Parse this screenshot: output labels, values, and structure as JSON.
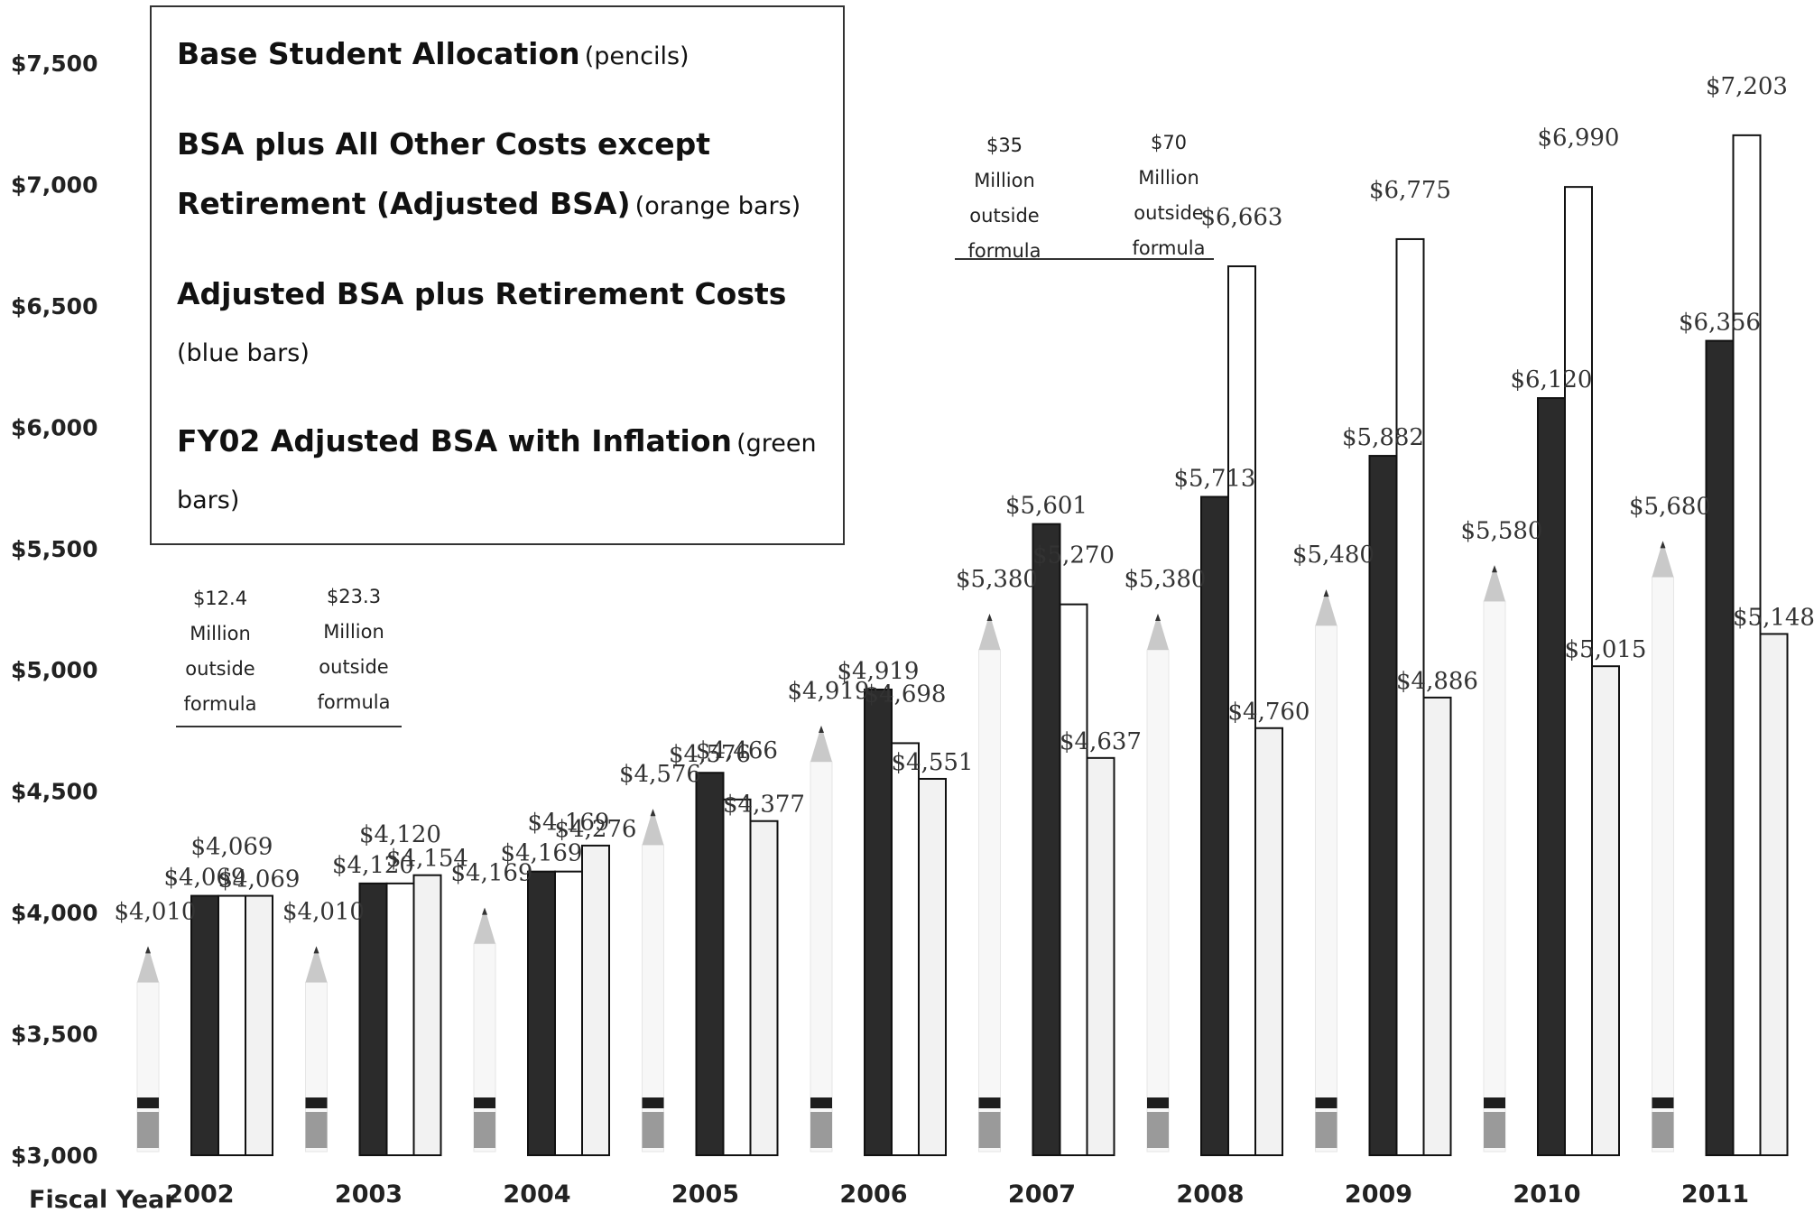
{
  "legend": {
    "entries": [
      {
        "main": "Base Student Allocation",
        "sub": "(pencils)"
      },
      {
        "main": "BSA plus All Other Costs except Retirement (Adjusted BSA)",
        "sub": "(orange bars)"
      },
      {
        "main": "Adjusted BSA plus Retirement Costs",
        "sub": "(blue bars)"
      },
      {
        "main": "FY02 Adjusted BSA with Inflation",
        "sub": "(green bars)"
      }
    ]
  },
  "notes": [
    {
      "id": "n2002",
      "lines": [
        "$12.4",
        "Million",
        "outside",
        "formula"
      ]
    },
    {
      "id": "n2003",
      "lines": [
        "$23.3",
        "Million",
        "outside",
        "formula"
      ]
    },
    {
      "id": "n2007",
      "lines": [
        "$35",
        "Million",
        "outside",
        "formula"
      ]
    },
    {
      "id": "n2008",
      "lines": [
        "$70",
        "Million",
        "outside",
        "formula"
      ]
    }
  ],
  "chart_data": {
    "type": "bar",
    "xlabel": "Fiscal Year",
    "ylabel": "",
    "ylim": [
      3000,
      7500
    ],
    "yticks": [
      "$3,000",
      "$3,500",
      "$4,000",
      "$4,500",
      "$5,000",
      "$5,500",
      "$6,000",
      "$6,500",
      "$7,000",
      "$7,500"
    ],
    "categories": [
      "2002",
      "2003",
      "2004",
      "2005",
      "2006",
      "2007",
      "2008",
      "2009",
      "2010",
      "2011"
    ],
    "series": [
      {
        "name": "Base Student Allocation",
        "color": "#d9d9d9",
        "values": [
          4010,
          4010,
          4169,
          4576,
          4919,
          5380,
          5380,
          5480,
          5580,
          5680
        ],
        "labels": [
          "$4,010",
          "$4,010",
          "$4,169",
          "$4,576",
          "$4,919",
          "$5,380",
          "$5,380",
          "$5,480",
          "$5,580",
          "$5,680"
        ]
      },
      {
        "name": "BSA plus All Other Costs except Retirement (Adjusted BSA)",
        "color": "#2b2b2b",
        "values": [
          4069,
          4120,
          4169,
          4576,
          4919,
          5601,
          5713,
          5882,
          6120,
          6356
        ],
        "labels": [
          "$4,069",
          "$4,120",
          "$4,169",
          "$4,576",
          "$4,919",
          "$5,601",
          "$5,713",
          "$5,882",
          "$6,120",
          "$6,356"
        ]
      },
      {
        "name": "Adjusted BSA plus Retirement Costs",
        "color": "#ffffff",
        "values": [
          4069,
          4120,
          4169,
          4466,
          4698,
          5270,
          6663,
          6775,
          6990,
          7203
        ],
        "labels": [
          "$4,069",
          "$4,120",
          "$4,169",
          "$4,466",
          "$4,698",
          "$5,270",
          "$6,663",
          "$6,775",
          "$6,990",
          "$7,203"
        ]
      },
      {
        "name": "FY02 Adjusted BSA with Inflation",
        "color": "#f2f2f2",
        "values": [
          4069,
          4154,
          4276,
          4377,
          4551,
          4637,
          4760,
          4886,
          5015,
          5148
        ],
        "labels": [
          "$4,069",
          "$4,154",
          "$4,276",
          "$4,377",
          "$4,551",
          "$4,637",
          "$4,760",
          "$4,886",
          "$5,015",
          "$5,148"
        ]
      }
    ]
  }
}
